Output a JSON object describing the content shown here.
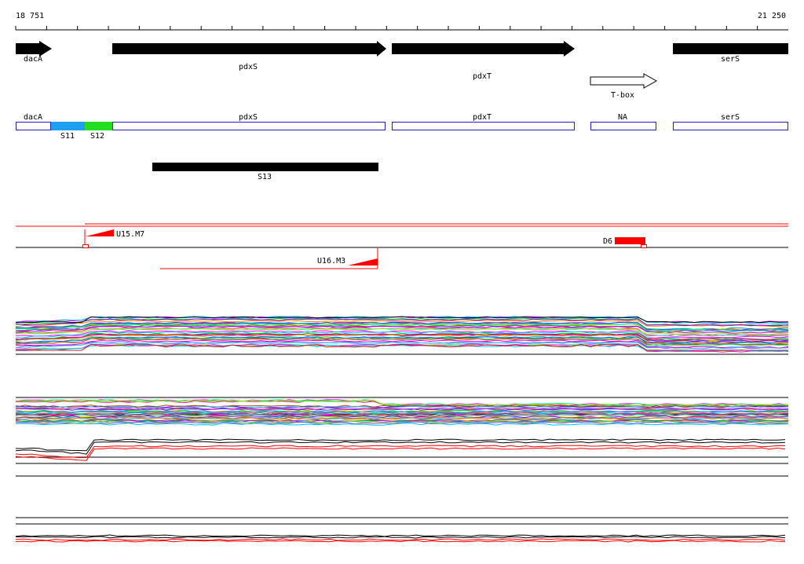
{
  "ruler": {
    "start_label": "18 751",
    "end_label": "21 250"
  },
  "genes": [
    {
      "label": "dacA",
      "strand": "+"
    },
    {
      "label": "pdxS",
      "strand": "+"
    },
    {
      "label": "pdxT",
      "strand": "+"
    },
    {
      "label": "serS",
      "strand": "+"
    }
  ],
  "riboswitch": {
    "label": "T-box"
  },
  "segments": {
    "boxes": [
      {
        "label": "dacA"
      },
      {
        "label": "pdxS"
      },
      {
        "label": "pdxT"
      },
      {
        "label": "NA"
      },
      {
        "label": "serS"
      }
    ],
    "colored": [
      {
        "label": "S11",
        "color": "#1e9ff0"
      },
      {
        "label": "S12",
        "color": "#22dd22"
      }
    ]
  },
  "transcript": {
    "label": "S13"
  },
  "upshifts": [
    {
      "label": "U15.M7"
    },
    {
      "label": "U16.M3"
    }
  ],
  "downshift": {
    "label": "D6"
  },
  "colors": {
    "gene_arrow": "#000000",
    "segment_box_border": "#1f1fbf",
    "signal_red": "#ff0000"
  }
}
